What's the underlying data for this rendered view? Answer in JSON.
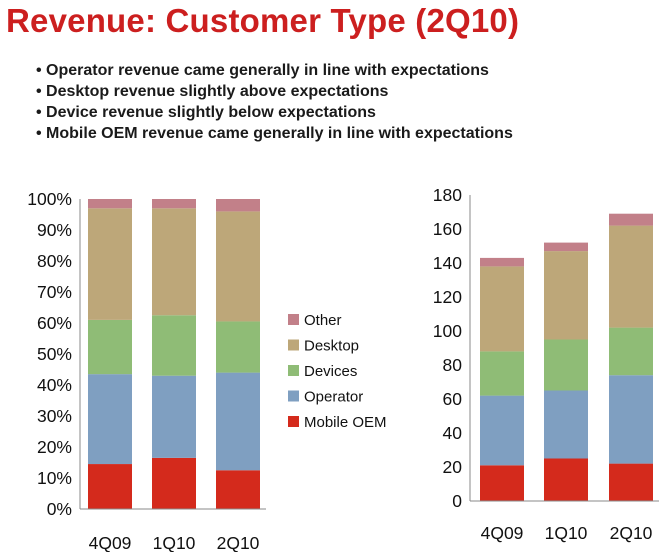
{
  "slide": {
    "title": "Revenue: Customer Type (2Q10)",
    "bullets": [
      "Operator revenue came generally in line with expectations",
      "Desktop revenue slightly above expectations",
      "Device revenue slightly below expectations",
      "Mobile OEM revenue came generally in line with expectations"
    ]
  },
  "colors": {
    "title": "#cc1f1f",
    "Mobile OEM": "#d42a1c",
    "Operator": "#7f9fc1",
    "Devices": "#8fbc76",
    "Desktop": "#bda779",
    "Other": "#c28089"
  },
  "chart_data": [
    {
      "type": "bar",
      "stacked": true,
      "categories": [
        "4Q09",
        "1Q10",
        "2Q10"
      ],
      "series": [
        {
          "name": "Mobile OEM",
          "values": [
            14.5,
            16.5,
            12.5
          ]
        },
        {
          "name": "Operator",
          "values": [
            29,
            26.5,
            31.5
          ]
        },
        {
          "name": "Devices",
          "values": [
            17.5,
            19.5,
            16.5
          ]
        },
        {
          "name": "Desktop",
          "values": [
            36,
            34.5,
            35.5
          ]
        },
        {
          "name": "Other",
          "values": [
            3,
            3,
            4
          ]
        }
      ],
      "yticks": [
        "0%",
        "10%",
        "20%",
        "30%",
        "40%",
        "50%",
        "60%",
        "70%",
        "80%",
        "90%",
        "100%"
      ],
      "ylim": [
        0,
        100
      ],
      "legend_position": "right"
    },
    {
      "type": "bar",
      "stacked": true,
      "categories": [
        "4Q09",
        "1Q10",
        "2Q10"
      ],
      "series": [
        {
          "name": "Mobile OEM",
          "values": [
            21,
            25,
            22
          ]
        },
        {
          "name": "Operator",
          "values": [
            41,
            40,
            52
          ]
        },
        {
          "name": "Devices",
          "values": [
            26,
            30,
            28
          ]
        },
        {
          "name": "Desktop",
          "values": [
            50,
            52,
            60
          ]
        },
        {
          "name": "Other",
          "values": [
            5,
            5,
            7
          ]
        }
      ],
      "yticks": [
        "0",
        "20",
        "40",
        "60",
        "80",
        "100",
        "120",
        "140",
        "160",
        "180"
      ],
      "ylim": [
        0,
        180
      ]
    }
  ],
  "legend": {
    "items": [
      "Other",
      "Desktop",
      "Devices",
      "Operator",
      "Mobile OEM"
    ]
  }
}
